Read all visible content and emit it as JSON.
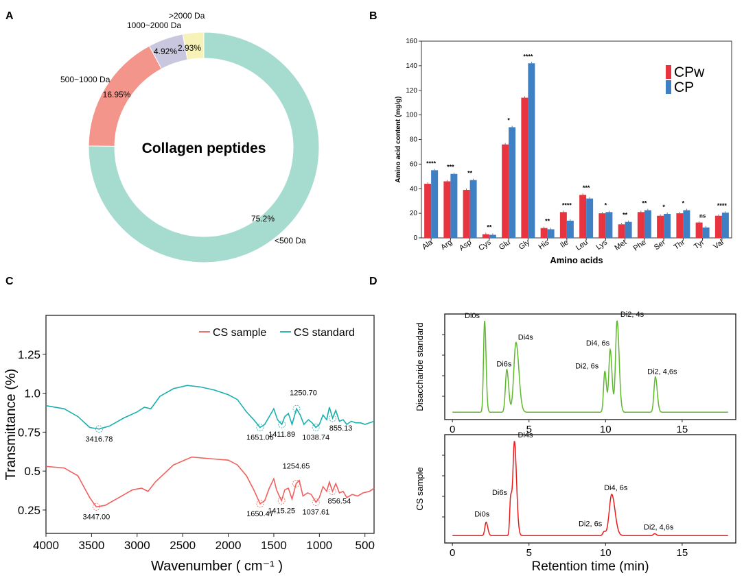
{
  "panel_letters": {
    "a": "A",
    "b": "B",
    "c": "C",
    "d": "D"
  },
  "colors": {
    "cpw": "#e8343f",
    "cp": "#3f7fc4",
    "cs_sample": "#f0605c",
    "cs_standard": "#1aaeae",
    "hplc_standard": "#5db82b",
    "hplc_sample": "#e81b1b"
  },
  "chart_data": [
    {
      "panel": "A",
      "type": "pie",
      "variant": "donut",
      "center_label": "Collagen peptides",
      "slices": [
        {
          "label": "<500 Da",
          "value": 75.2,
          "value_label": "75.2%",
          "color": "#a6dccf"
        },
        {
          "label": "500~1000 Da",
          "value": 16.95,
          "value_label": "16.95%",
          "color": "#f3958a"
        },
        {
          "label": "1000~2000 Da",
          "value": 4.92,
          "value_label": "4.92%",
          "color": "#c9c6e0"
        },
        {
          "label": ">2000 Da",
          "value": 2.93,
          "value_label": "2.93%",
          "color": "#f7f2b8"
        }
      ]
    },
    {
      "panel": "B",
      "type": "bar",
      "xlabel": "Amino acids",
      "ylabel": "Amino acid content (mg/g)",
      "ylim": [
        0,
        160
      ],
      "yticks": [
        0,
        20,
        40,
        60,
        80,
        100,
        120,
        140,
        160
      ],
      "legend_position": "top-right",
      "categories": [
        "Ala",
        "Arg",
        "Asp",
        "Cys",
        "Glu",
        "Gly",
        "His",
        "Ile",
        "Leu",
        "Lys",
        "Met",
        "Phe",
        "Ser",
        "Thr",
        "Tyr",
        "Val"
      ],
      "series": [
        {
          "name": "CPw",
          "values": [
            44,
            46,
            39,
            3,
            76,
            114,
            8,
            21,
            35,
            20,
            11,
            21,
            18,
            20,
            12.5,
            18
          ]
        },
        {
          "name": "CP",
          "values": [
            55,
            52,
            47,
            2.5,
            90,
            142,
            7,
            14,
            32,
            21,
            13,
            22.5,
            19.5,
            22.5,
            8.5,
            20.5
          ]
        }
      ],
      "significance": [
        "****",
        "***",
        "**",
        "**",
        "*",
        "****",
        "**",
        "****",
        "***",
        "*",
        "**",
        "**",
        "*",
        "*",
        "ns",
        "****"
      ]
    },
    {
      "panel": "C",
      "type": "line",
      "xlabel": "Wavenumber ( cm⁻¹ )",
      "ylabel": "Transmittance (%)",
      "xlim": [
        4000,
        400
      ],
      "ylim": [
        0.1,
        1.5
      ],
      "xticks": [
        4000,
        3500,
        3000,
        2500,
        2000,
        1500,
        1000,
        500
      ],
      "ytick_labels": [
        "0.25",
        "0.5",
        "0.75",
        "1.0",
        "1.25"
      ],
      "yticks": [
        0.25,
        0.5,
        0.75,
        1.0,
        1.25
      ],
      "legend_position": "top-right",
      "series": [
        {
          "name": "CS sample",
          "x": [
            4000,
            3800,
            3650,
            3520,
            3447,
            3350,
            3200,
            3050,
            2950,
            2880,
            2800,
            2600,
            2400,
            2200,
            2000,
            1900,
            1800,
            1720,
            1650.47,
            1600,
            1550,
            1500,
            1470,
            1440,
            1415.25,
            1380,
            1340,
            1300,
            1254.65,
            1220,
            1180,
            1130,
            1090,
            1037.61,
            1000,
            960,
            920,
            890,
            856.54,
            820,
            780,
            740,
            700,
            640,
            580,
            520,
            450,
            400
          ],
          "y": [
            0.53,
            0.52,
            0.47,
            0.33,
            0.27,
            0.28,
            0.33,
            0.38,
            0.39,
            0.37,
            0.43,
            0.54,
            0.59,
            0.58,
            0.57,
            0.54,
            0.47,
            0.38,
            0.29,
            0.31,
            0.39,
            0.45,
            0.38,
            0.34,
            0.31,
            0.38,
            0.39,
            0.32,
            0.42,
            0.44,
            0.34,
            0.36,
            0.35,
            0.3,
            0.33,
            0.4,
            0.37,
            0.43,
            0.37,
            0.42,
            0.36,
            0.37,
            0.33,
            0.35,
            0.34,
            0.36,
            0.37,
            0.39
          ],
          "annotations": [
            {
              "x": 3447,
              "label": "3447.00"
            },
            {
              "x": 1650.47,
              "label": "1650.47"
            },
            {
              "x": 1415.25,
              "label": "1415.25"
            },
            {
              "x": 1254.65,
              "label": "1254.65"
            },
            {
              "x": 1037.61,
              "label": "1037.61"
            },
            {
              "x": 856.54,
              "label": "856.54"
            }
          ]
        },
        {
          "name": "CS standard",
          "x": [
            4000,
            3800,
            3650,
            3520,
            3416.78,
            3300,
            3150,
            3000,
            2920,
            2850,
            2750,
            2600,
            2450,
            2300,
            2150,
            2000,
            1900,
            1800,
            1720,
            1651.06,
            1600,
            1540,
            1500,
            1460,
            1411.89,
            1380,
            1340,
            1300,
            1250.7,
            1210,
            1170,
            1120,
            1080,
            1038.74,
            1000,
            960,
            920,
            890,
            855.13,
            820,
            780,
            740,
            700,
            650,
            600,
            550,
            500,
            450,
            400
          ],
          "y": [
            0.92,
            0.9,
            0.85,
            0.78,
            0.77,
            0.79,
            0.84,
            0.88,
            0.91,
            0.9,
            0.98,
            1.03,
            1.05,
            1.04,
            1.02,
            0.99,
            0.96,
            0.88,
            0.83,
            0.78,
            0.8,
            0.86,
            0.9,
            0.83,
            0.8,
            0.85,
            0.87,
            0.8,
            0.9,
            0.86,
            0.8,
            0.83,
            0.81,
            0.78,
            0.8,
            0.86,
            0.83,
            0.91,
            0.84,
            0.89,
            0.82,
            0.83,
            0.8,
            0.82,
            0.81,
            0.81,
            0.8,
            0.81,
            0.82
          ],
          "annotations": [
            {
              "x": 3416.78,
              "label": "3416.78"
            },
            {
              "x": 1651.06,
              "label": "1651.06"
            },
            {
              "x": 1411.89,
              "label": "1411.89"
            },
            {
              "x": 1250.7,
              "label": "1250.70"
            },
            {
              "x": 1038.74,
              "label": "1038.74"
            },
            {
              "x": 855.13,
              "label": "855.13"
            }
          ]
        }
      ]
    },
    {
      "panel": "D",
      "type": "line",
      "xlabel": "Retention time (min)",
      "xlim": [
        -0.5,
        18.5
      ],
      "xticks": [
        0,
        5,
        10,
        15
      ],
      "subplots": [
        {
          "ylabel": "Disaccharide standard",
          "ylim": [
            0,
            100
          ],
          "baseline": 2,
          "peaks": [
            {
              "label": "Di0s",
              "rt": 2.1,
              "height": 98,
              "width": 0.07
            },
            {
              "label": "Di6s",
              "rt": 3.55,
              "height": 46,
              "width": 0.09
            },
            {
              "label": "Di4s",
              "rt": 4.15,
              "height": 75,
              "width": 0.14
            },
            {
              "label": "Di2, 6s",
              "rt": 9.95,
              "height": 44,
              "width": 0.08
            },
            {
              "label": "Di4, 6s",
              "rt": 10.3,
              "height": 67,
              "width": 0.09
            },
            {
              "label": "Di2, 4s",
              "rt": 10.75,
              "height": 98,
              "width": 0.1
            },
            {
              "label": "Di2, 4,6s",
              "rt": 13.25,
              "height": 38,
              "width": 0.09
            }
          ]
        },
        {
          "ylabel": "CS sample",
          "ylim": [
            0,
            100
          ],
          "baseline": 2,
          "peaks": [
            {
              "label": "Di0s",
              "rt": 2.2,
              "height": 14,
              "width": 0.08
            },
            {
              "label": "Di6s",
              "rt": 3.8,
              "height": 38,
              "width": 0.06
            },
            {
              "label": "Di4s",
              "rt": 4.05,
              "height": 98,
              "width": 0.1
            },
            {
              "label": "Di2, 6s",
              "rt": 9.9,
              "height": 4,
              "width": 0.08
            },
            {
              "label": "Di4, 6s",
              "rt": 10.4,
              "height": 43,
              "width": 0.16
            },
            {
              "label": "Di2, 4,6s",
              "rt": 13.2,
              "height": 2,
              "width": 0.08
            }
          ]
        }
      ]
    }
  ]
}
